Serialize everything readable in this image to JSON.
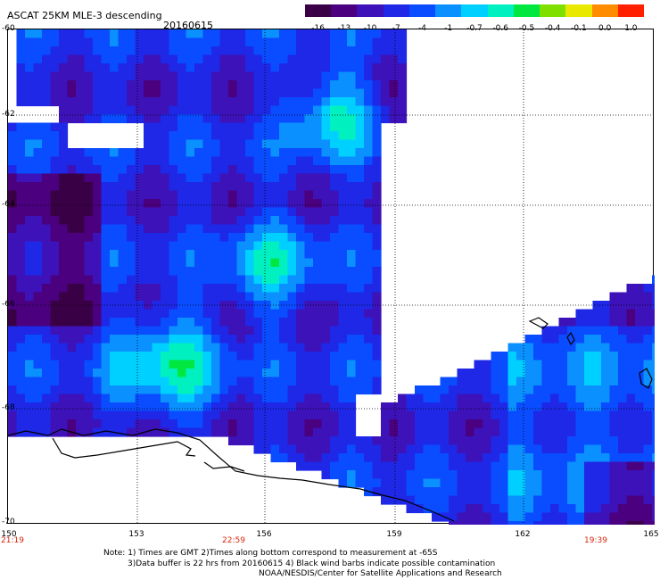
{
  "title": "ASCAT 25KM MLE-3 descending",
  "date": "20160615",
  "colorbar": {
    "labels": [
      "-16",
      "-13",
      "-10",
      "-7",
      "-4",
      "-1",
      "-0.7",
      "-0.6",
      "-0.5",
      "-0.4",
      "-0.1",
      "0.0",
      "1.0"
    ],
    "colors": [
      "#3a0046",
      "#4b0080",
      "#3d12b8",
      "#1e28e6",
      "#0a4cff",
      "#0a90ff",
      "#00d0ff",
      "#00f0c0",
      "#00e840",
      "#7fe000",
      "#e8e800",
      "#ff8c00",
      "#ff2000"
    ]
  },
  "lat_labels": [
    "-60",
    "-62",
    "-64",
    "-66",
    "-68",
    "-70"
  ],
  "lon_labels": [
    "150",
    "153",
    "156",
    "159",
    "162",
    "165"
  ],
  "time_labels": [
    "21:19",
    "22:59",
    "19:39"
  ],
  "notes": [
    "Note: 1) Times are GMT 2)Times along bottom correspond to measurement at -65S",
    "3)Data buffer is 22 hrs from 20160615 4) Black wind barbs indicate possible contamination",
    "NOAA/NESDIS/Center for Satellite Applications and Research"
  ],
  "colors": {
    "time": "#d9260f",
    "grid": "#000000",
    "coast": "#000000"
  }
}
